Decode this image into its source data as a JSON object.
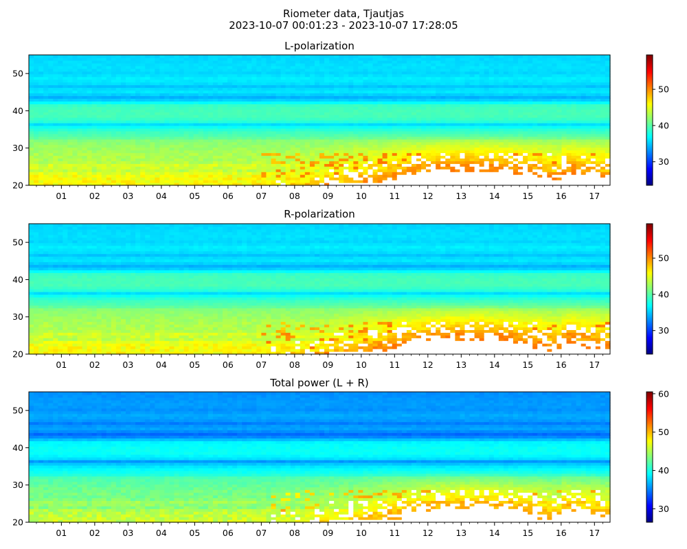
{
  "title": "Riometer data, Tjautjas",
  "subtitle": "2023-10-07 00:01:23 - 2023-10-07 17:28:05",
  "chart_data": [
    {
      "type": "heatmap",
      "title": "L-polarization",
      "x_range_hours": [
        0.023,
        17.468
      ],
      "x_tick_labels": [
        "01",
        "02",
        "03",
        "04",
        "05",
        "06",
        "07",
        "08",
        "09",
        "10",
        "11",
        "12",
        "13",
        "14",
        "15",
        "16",
        "17"
      ],
      "x_tick_hours": [
        1,
        2,
        3,
        4,
        5,
        6,
        7,
        8,
        9,
        10,
        11,
        12,
        13,
        14,
        15,
        16,
        17
      ],
      "ylim": [
        20,
        55
      ],
      "y_ticks": [
        20,
        30,
        40,
        50
      ],
      "colormap": "jet",
      "colorbar_range": [
        23.5,
        59.5
      ],
      "colorbar_ticks": [
        30,
        40,
        50
      ],
      "saturated_above": 51
    },
    {
      "type": "heatmap",
      "title": "R-polarization",
      "x_range_hours": [
        0.023,
        17.468
      ],
      "x_tick_labels": [
        "01",
        "02",
        "03",
        "04",
        "05",
        "06",
        "07",
        "08",
        "09",
        "10",
        "11",
        "12",
        "13",
        "14",
        "15",
        "16",
        "17"
      ],
      "x_tick_hours": [
        1,
        2,
        3,
        4,
        5,
        6,
        7,
        8,
        9,
        10,
        11,
        12,
        13,
        14,
        15,
        16,
        17
      ],
      "ylim": [
        20,
        55
      ],
      "y_ticks": [
        20,
        30,
        40,
        50
      ],
      "colormap": "jet",
      "colorbar_range": [
        23.5,
        59.5
      ],
      "colorbar_ticks": [
        30,
        40,
        50
      ],
      "saturated_above": 51
    },
    {
      "type": "heatmap",
      "title": "Total power (L + R)",
      "x_range_hours": [
        0.023,
        17.468
      ],
      "x_tick_labels": [
        "01",
        "02",
        "03",
        "04",
        "05",
        "06",
        "07",
        "08",
        "09",
        "10",
        "11",
        "12",
        "13",
        "14",
        "15",
        "16",
        "17"
      ],
      "x_tick_hours": [
        1,
        2,
        3,
        4,
        5,
        6,
        7,
        8,
        9,
        10,
        11,
        12,
        13,
        14,
        15,
        16,
        17
      ],
      "ylim": [
        20,
        55
      ],
      "y_ticks": [
        20,
        30,
        40,
        50
      ],
      "colormap": "jet",
      "colorbar_range": [
        26.5,
        60.5
      ],
      "colorbar_ticks": [
        30,
        40,
        50,
        60
      ],
      "saturated_above": 51
    }
  ]
}
